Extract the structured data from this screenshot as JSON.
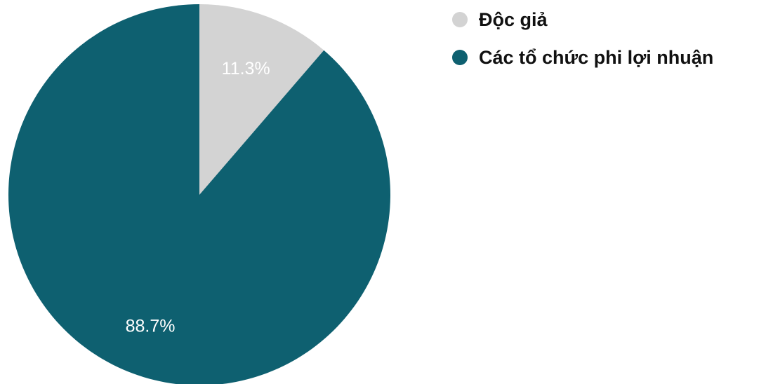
{
  "chart_data": {
    "type": "pie",
    "title": "",
    "categories": [
      "Độc giả",
      "Các tổ chức phi lợi nhuận"
    ],
    "values": [
      11.3,
      88.7
    ],
    "value_labels": [
      "11.3%",
      "88.7%"
    ],
    "colors": [
      "#d3d3d3",
      "#0e6070"
    ],
    "label_color": "#ffffff",
    "legend_position": "right",
    "start_angle": "12 o'clock",
    "direction": "clockwise"
  }
}
